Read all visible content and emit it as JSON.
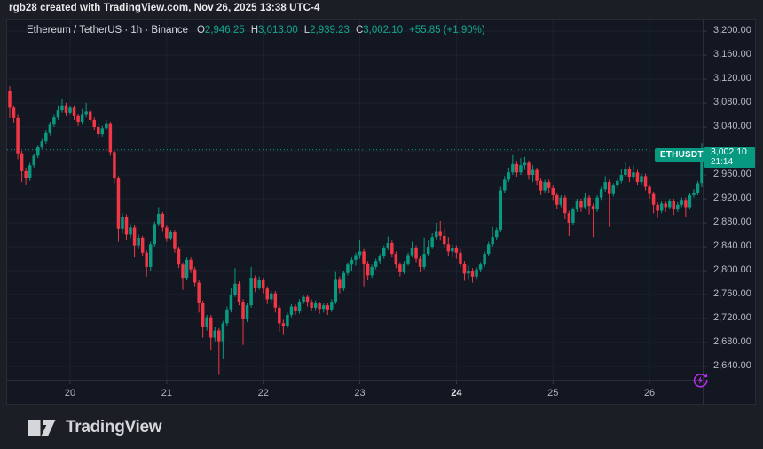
{
  "header": {
    "attribution": "rgb28 created with TradingView.com, Nov 26, 2025 13:38 UTC-4"
  },
  "legend": {
    "symbol_title": "Ethereum / TetherUS · 1h · Binance",
    "ohlc": [
      {
        "label": "O",
        "value": "2,946.25"
      },
      {
        "label": "H",
        "value": "3,013.00"
      },
      {
        "label": "L",
        "value": "2,939.23"
      },
      {
        "label": "C",
        "value": "3,002.10"
      }
    ],
    "change": "+55.85 (+1.90%)"
  },
  "price_line": {
    "symbol_label": "ETHUSDT",
    "price": "3,002.10",
    "countdown": "21:14"
  },
  "footer": {
    "logo_text": "TradingView"
  },
  "colors": {
    "up": "#089981",
    "down": "#f23645",
    "pane_background": "#131722",
    "outer_background": "#1b1e25",
    "grid": "#1d2230",
    "axis_text": "#b7bac3",
    "accent_purple": "#b52de8"
  },
  "chart_data": {
    "type": "candlestick",
    "title": "Ethereum / TetherUS",
    "symbol": "ETHUSDT",
    "exchange": "Binance",
    "interval": "1h",
    "last_price": 3002.1,
    "last_candle": {
      "open": 2946.25,
      "high": 3013.0,
      "low": 2939.23,
      "close": 3002.1,
      "change": 55.85,
      "change_pct": 1.9
    },
    "y_axis": {
      "min_visible": 2626,
      "max_visible": 3110,
      "grid_step": 40
    },
    "price_grid": [
      3200,
      3160,
      3120,
      3080,
      3040,
      3000,
      2960,
      2920,
      2880,
      2840,
      2800,
      2760,
      2720,
      2680,
      2640
    ],
    "price_axis_labels": [
      {
        "text": "3,200.00",
        "price": 3200
      },
      {
        "text": "3,160.00",
        "price": 3160
      },
      {
        "text": "3,120.00",
        "price": 3120
      },
      {
        "text": "3,080.00",
        "price": 3080
      },
      {
        "text": "3,040.00",
        "price": 3040
      },
      {
        "text": "2,960.00",
        "price": 2960
      },
      {
        "text": "2,920.00",
        "price": 2920
      },
      {
        "text": "2,880.00",
        "price": 2880
      },
      {
        "text": "2,840.00",
        "price": 2840
      },
      {
        "text": "2,800.00",
        "price": 2800
      },
      {
        "text": "2,760.00",
        "price": 2760
      },
      {
        "text": "2,720.00",
        "price": 2720
      },
      {
        "text": "2,680.00",
        "price": 2680
      },
      {
        "text": "2,640.00",
        "price": 2640
      }
    ],
    "time_axis": [
      {
        "label": "20",
        "index": 15,
        "bold": false
      },
      {
        "label": "21",
        "index": 39,
        "bold": false
      },
      {
        "label": "22",
        "index": 63,
        "bold": false
      },
      {
        "label": "23",
        "index": 87,
        "bold": false
      },
      {
        "label": "24",
        "index": 111,
        "bold": true
      },
      {
        "label": "25",
        "index": 135,
        "bold": false
      },
      {
        "label": "26",
        "index": 159,
        "bold": false
      }
    ],
    "candles": [
      [
        3100,
        3108,
        3055,
        3072
      ],
      [
        3072,
        3076,
        3046,
        3055
      ],
      [
        3055,
        3060,
        2986,
        2996
      ],
      [
        2996,
        3000,
        2948,
        2966
      ],
      [
        2966,
        2972,
        2944,
        2954
      ],
      [
        2954,
        2980,
        2950,
        2976
      ],
      [
        2976,
        2996,
        2972,
        2992
      ],
      [
        2992,
        3010,
        2988,
        3006
      ],
      [
        3006,
        3020,
        3002,
        3016
      ],
      [
        3016,
        3034,
        3012,
        3030
      ],
      [
        3030,
        3048,
        3026,
        3044
      ],
      [
        3044,
        3060,
        3040,
        3056
      ],
      [
        3056,
        3076,
        3052,
        3068
      ],
      [
        3068,
        3086,
        3064,
        3076
      ],
      [
        3076,
        3080,
        3058,
        3064
      ],
      [
        3064,
        3076,
        3060,
        3072
      ],
      [
        3072,
        3076,
        3052,
        3058
      ],
      [
        3058,
        3062,
        3042,
        3048
      ],
      [
        3048,
        3070,
        3044,
        3060
      ],
      [
        3060,
        3080,
        3056,
        3066
      ],
      [
        3066,
        3070,
        3046,
        3052
      ],
      [
        3052,
        3056,
        3034,
        3040
      ],
      [
        3040,
        3044,
        3022,
        3028
      ],
      [
        3028,
        3042,
        3024,
        3038
      ],
      [
        3038,
        3052,
        3034,
        3045
      ],
      [
        3045,
        3048,
        2992,
        2998
      ],
      [
        2998,
        3002,
        2946,
        2954
      ],
      [
        2954,
        2958,
        2848,
        2870
      ],
      [
        2870,
        2896,
        2862,
        2890
      ],
      [
        2890,
        2894,
        2852,
        2860
      ],
      [
        2860,
        2878,
        2854,
        2872
      ],
      [
        2872,
        2876,
        2822,
        2842
      ],
      [
        2842,
        2860,
        2836,
        2855
      ],
      [
        2855,
        2858,
        2824,
        2830
      ],
      [
        2830,
        2834,
        2790,
        2806
      ],
      [
        2806,
        2848,
        2800,
        2844
      ],
      [
        2844,
        2882,
        2840,
        2878
      ],
      [
        2878,
        2906,
        2874,
        2895
      ],
      [
        2895,
        2898,
        2866,
        2872
      ],
      [
        2872,
        2876,
        2848,
        2854
      ],
      [
        2854,
        2868,
        2850,
        2864
      ],
      [
        2864,
        2868,
        2830,
        2836
      ],
      [
        2836,
        2840,
        2804,
        2810
      ],
      [
        2810,
        2814,
        2768,
        2788
      ],
      [
        2788,
        2822,
        2784,
        2818
      ],
      [
        2818,
        2822,
        2796,
        2802
      ],
      [
        2802,
        2806,
        2774,
        2780
      ],
      [
        2780,
        2784,
        2730,
        2746
      ],
      [
        2746,
        2750,
        2688,
        2706
      ],
      [
        2706,
        2726,
        2700,
        2722
      ],
      [
        2722,
        2726,
        2668,
        2688
      ],
      [
        2688,
        2706,
        2682,
        2700
      ],
      [
        2700,
        2704,
        2626,
        2682
      ],
      [
        2682,
        2716,
        2652,
        2712
      ],
      [
        2712,
        2740,
        2708,
        2735
      ],
      [
        2735,
        2772,
        2730,
        2760
      ],
      [
        2760,
        2804,
        2756,
        2778
      ],
      [
        2778,
        2782,
        2742,
        2748
      ],
      [
        2748,
        2752,
        2676,
        2720
      ],
      [
        2720,
        2746,
        2714,
        2742
      ],
      [
        2742,
        2806,
        2738,
        2788
      ],
      [
        2788,
        2792,
        2764,
        2772
      ],
      [
        2772,
        2790,
        2768,
        2784
      ],
      [
        2784,
        2788,
        2762,
        2770
      ],
      [
        2770,
        2774,
        2744,
        2752
      ],
      [
        2752,
        2766,
        2746,
        2762
      ],
      [
        2762,
        2766,
        2730,
        2738
      ],
      [
        2738,
        2742,
        2698,
        2712
      ],
      [
        2712,
        2718,
        2694,
        2708
      ],
      [
        2708,
        2730,
        2704,
        2726
      ],
      [
        2726,
        2744,
        2722,
        2740
      ],
      [
        2740,
        2744,
        2726,
        2732
      ],
      [
        2732,
        2752,
        2728,
        2748
      ],
      [
        2748,
        2760,
        2744,
        2756
      ],
      [
        2756,
        2760,
        2740,
        2748
      ],
      [
        2748,
        2752,
        2732,
        2738
      ],
      [
        2738,
        2750,
        2734,
        2745
      ],
      [
        2745,
        2748,
        2728,
        2736
      ],
      [
        2736,
        2746,
        2730,
        2742
      ],
      [
        2742,
        2746,
        2726,
        2735
      ],
      [
        2735,
        2752,
        2731,
        2748
      ],
      [
        2748,
        2799,
        2744,
        2786
      ],
      [
        2786,
        2790,
        2762,
        2770
      ],
      [
        2770,
        2800,
        2766,
        2796
      ],
      [
        2796,
        2814,
        2792,
        2810
      ],
      [
        2810,
        2822,
        2800,
        2818
      ],
      [
        2818,
        2830,
        2808,
        2826
      ],
      [
        2826,
        2852,
        2820,
        2832
      ],
      [
        2832,
        2836,
        2774,
        2812
      ],
      [
        2812,
        2816,
        2784,
        2792
      ],
      [
        2792,
        2810,
        2788,
        2806
      ],
      [
        2806,
        2820,
        2802,
        2816
      ],
      [
        2816,
        2828,
        2812,
        2824
      ],
      [
        2824,
        2842,
        2820,
        2838
      ],
      [
        2838,
        2857,
        2834,
        2846
      ],
      [
        2846,
        2850,
        2822,
        2828
      ],
      [
        2828,
        2832,
        2804,
        2810
      ],
      [
        2810,
        2814,
        2790,
        2798
      ],
      [
        2798,
        2816,
        2794,
        2812
      ],
      [
        2812,
        2830,
        2808,
        2826
      ],
      [
        2826,
        2848,
        2822,
        2838
      ],
      [
        2838,
        2842,
        2814,
        2820
      ],
      [
        2820,
        2824,
        2798,
        2806
      ],
      [
        2806,
        2855,
        2802,
        2828
      ],
      [
        2828,
        2850,
        2824,
        2840
      ],
      [
        2840,
        2862,
        2836,
        2856
      ],
      [
        2856,
        2880,
        2852,
        2866
      ],
      [
        2866,
        2883,
        2850,
        2858
      ],
      [
        2858,
        2870,
        2838,
        2844
      ],
      [
        2844,
        2856,
        2824,
        2832
      ],
      [
        2832,
        2844,
        2822,
        2838
      ],
      [
        2838,
        2842,
        2820,
        2830
      ],
      [
        2830,
        2836,
        2806,
        2812
      ],
      [
        2812,
        2816,
        2783,
        2795
      ],
      [
        2795,
        2808,
        2786,
        2800
      ],
      [
        2800,
        2804,
        2780,
        2790
      ],
      [
        2790,
        2806,
        2786,
        2802
      ],
      [
        2802,
        2814,
        2798,
        2810
      ],
      [
        2810,
        2832,
        2806,
        2828
      ],
      [
        2828,
        2848,
        2824,
        2844
      ],
      [
        2844,
        2873,
        2840,
        2856
      ],
      [
        2856,
        2872,
        2852,
        2868
      ],
      [
        2868,
        2940,
        2864,
        2934
      ],
      [
        2934,
        2958,
        2930,
        2952
      ],
      [
        2952,
        2972,
        2948,
        2964
      ],
      [
        2964,
        2993,
        2960,
        2978
      ],
      [
        2978,
        2982,
        2956,
        2964
      ],
      [
        2964,
        2988,
        2960,
        2976
      ],
      [
        2976,
        2990,
        2968,
        2980
      ],
      [
        2980,
        2984,
        2952,
        2960
      ],
      [
        2960,
        2976,
        2948,
        2968
      ],
      [
        2968,
        2972,
        2942,
        2950
      ],
      [
        2950,
        2954,
        2926,
        2934
      ],
      [
        2934,
        2952,
        2930,
        2948
      ],
      [
        2948,
        2952,
        2930,
        2938
      ],
      [
        2938,
        2942,
        2918,
        2926
      ],
      [
        2926,
        2930,
        2902,
        2910
      ],
      [
        2910,
        2926,
        2906,
        2922
      ],
      [
        2922,
        2926,
        2886,
        2896
      ],
      [
        2896,
        2900,
        2858,
        2880
      ],
      [
        2880,
        2906,
        2876,
        2902
      ],
      [
        2902,
        2920,
        2898,
        2916
      ],
      [
        2916,
        2920,
        2898,
        2906
      ],
      [
        2906,
        2930,
        2902,
        2922
      ],
      [
        2922,
        2926,
        2894,
        2908
      ],
      [
        2908,
        2912,
        2856,
        2902
      ],
      [
        2902,
        2926,
        2898,
        2922
      ],
      [
        2922,
        2940,
        2918,
        2936
      ],
      [
        2936,
        2958,
        2932,
        2948
      ],
      [
        2948,
        2952,
        2873,
        2928
      ],
      [
        2928,
        2946,
        2924,
        2942
      ],
      [
        2942,
        2954,
        2938,
        2950
      ],
      [
        2950,
        2970,
        2946,
        2960
      ],
      [
        2960,
        2981,
        2956,
        2970
      ],
      [
        2970,
        2974,
        2948,
        2956
      ],
      [
        2956,
        2976,
        2952,
        2964
      ],
      [
        2964,
        2968,
        2942,
        2948
      ],
      [
        2948,
        2962,
        2944,
        2958
      ],
      [
        2958,
        2962,
        2934,
        2940
      ],
      [
        2940,
        2944,
        2920,
        2928
      ],
      [
        2928,
        2932,
        2896,
        2910
      ],
      [
        2910,
        2914,
        2888,
        2900
      ],
      [
        2900,
        2916,
        2896,
        2912
      ],
      [
        2912,
        2916,
        2898,
        2906
      ],
      [
        2906,
        2920,
        2902,
        2916
      ],
      [
        2916,
        2920,
        2893,
        2902
      ],
      [
        2902,
        2914,
        2898,
        2910
      ],
      [
        2910,
        2922,
        2906,
        2918
      ],
      [
        2918,
        2922,
        2890,
        2906
      ],
      [
        2906,
        2930,
        2902,
        2926
      ],
      [
        2926,
        2936,
        2922,
        2930
      ],
      [
        2930,
        2950,
        2926,
        2946
      ],
      [
        2946.25,
        3013,
        2939.23,
        3002.1
      ]
    ]
  }
}
